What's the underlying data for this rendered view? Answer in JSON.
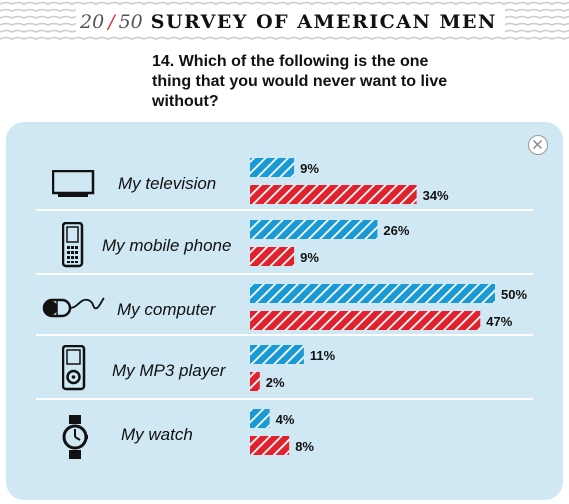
{
  "header": {
    "current": "20",
    "separator": "/",
    "total": "50",
    "title": "SURVEY OF AMERICAN MEN"
  },
  "question": "14. Which of the following is the one thing that you would never want to live without?",
  "colors": {
    "series_a": "#1a9ad4",
    "series_b": "#e0222e",
    "panel": "#cfe8f3",
    "accent": "#e0222e"
  },
  "icons": [
    "television-icon",
    "mobile-phone-icon",
    "computer-mouse-icon",
    "mp3-player-icon",
    "watch-icon",
    "close-icon"
  ],
  "chart_data": {
    "type": "bar",
    "orientation": "horizontal",
    "categories": [
      "My television",
      "My mobile phone",
      "My computer",
      "My MP3 player",
      "My watch"
    ],
    "series": [
      {
        "values": [
          9,
          26,
          50,
          11,
          4
        ],
        "labels": [
          "9%",
          "26%",
          "50%",
          "11%",
          "4%"
        ],
        "color": "#1a9ad4"
      },
      {
        "values": [
          34,
          9,
          47,
          2,
          8
        ],
        "labels": [
          "34%",
          "9%",
          "47%",
          "2%",
          "8%"
        ],
        "color": "#e0222e"
      }
    ],
    "unit": "%",
    "xlim": [
      0,
      50
    ],
    "grid": false,
    "legend": false
  }
}
